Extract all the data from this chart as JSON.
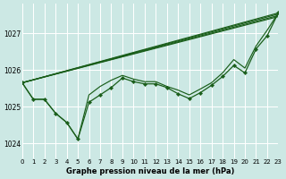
{
  "title": "Graphe pression niveau de la mer (hPa)",
  "bg_color": "#cce8e4",
  "grid_color": "#ffffff",
  "line_color": "#1a5e1a",
  "xlim": [
    0,
    23
  ],
  "ylim": [
    1023.6,
    1027.8
  ],
  "yticks": [
    1024,
    1025,
    1026,
    1027
  ],
  "xticks": [
    0,
    1,
    2,
    3,
    4,
    5,
    6,
    7,
    8,
    9,
    10,
    11,
    12,
    13,
    14,
    15,
    16,
    17,
    18,
    19,
    20,
    21,
    22,
    23
  ],
  "straight_lines": [
    [
      [
        0,
        23
      ],
      [
        1025.65,
        1027.55
      ]
    ],
    [
      [
        0,
        23
      ],
      [
        1025.65,
        1027.52
      ]
    ],
    [
      [
        0,
        23
      ],
      [
        1025.65,
        1027.48
      ]
    ],
    [
      [
        0,
        23
      ],
      [
        1025.65,
        1027.45
      ]
    ]
  ],
  "marker_series": [
    1025.65,
    1025.2,
    1025.2,
    1024.82,
    1024.57,
    1024.12,
    1025.12,
    1025.32,
    1025.52,
    1025.78,
    1025.68,
    1025.62,
    1025.62,
    1025.52,
    1025.35,
    1025.22,
    1025.38,
    1025.58,
    1025.82,
    1026.12,
    1025.92,
    1026.57,
    1026.93,
    1027.55
  ],
  "extra_series": [
    [
      1025.65,
      1025.2,
      1025.2,
      1024.82,
      1024.57,
      1024.12,
      1025.32,
      1025.55,
      1025.72,
      1025.85,
      1025.75,
      1025.68,
      1025.68,
      1025.55,
      1025.45,
      1025.32,
      1025.48,
      1025.65,
      1025.92,
      1026.28,
      1026.05,
      1026.65,
      1027.08,
      1027.55
    ]
  ],
  "figsize": [
    3.2,
    2.0
  ],
  "dpi": 100
}
